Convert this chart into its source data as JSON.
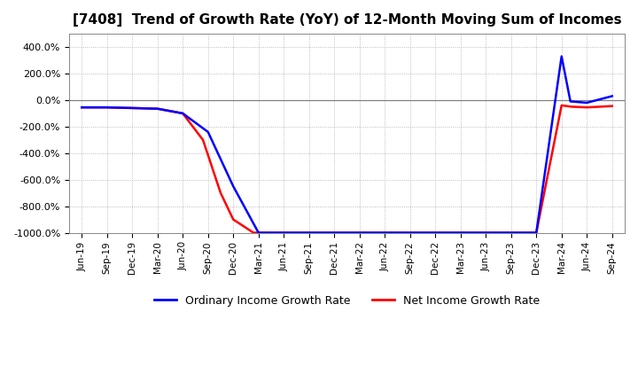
{
  "title": "[7408]  Trend of Growth Rate (YoY) of 12-Month Moving Sum of Incomes",
  "title_fontsize": 11,
  "background_color": "#ffffff",
  "grid_color": "#aaaaaa",
  "ylim": [
    -1000,
    500
  ],
  "yticks": [
    -1000,
    -800,
    -600,
    -400,
    -200,
    0,
    200,
    400
  ],
  "ytick_labels": [
    "-1000.0%",
    "-800.0%",
    "-600.0%",
    "-400.0%",
    "-200.0%",
    "0.0%",
    "200.0%",
    "400.0%"
  ],
  "xtick_labels": [
    "Jun-19",
    "Sep-19",
    "Dec-19",
    "Mar-20",
    "Jun-20",
    "Sep-20",
    "Dec-20",
    "Mar-21",
    "Jun-21",
    "Sep-21",
    "Dec-21",
    "Mar-22",
    "Jun-22",
    "Sep-22",
    "Dec-22",
    "Mar-23",
    "Jun-23",
    "Sep-23",
    "Dec-23",
    "Mar-24",
    "Jun-24",
    "Sep-24"
  ],
  "ordinary_income_color": "#0000ff",
  "net_income_color": "#ff0000",
  "ordinary_income_label": "Ordinary Income Growth Rate",
  "net_income_label": "Net Income Growth Rate",
  "ordinary_income_x": [
    0,
    1,
    2,
    3,
    4,
    5,
    6,
    7,
    18,
    19,
    19.35,
    20,
    21
  ],
  "ordinary_income_y": [
    -55,
    -55,
    -60,
    -65,
    -100,
    -240,
    -650,
    -1000,
    -1000,
    330,
    -10,
    -20,
    30
  ],
  "net_income_x": [
    0,
    1,
    2,
    3,
    4,
    4.8,
    5.5,
    6,
    6.8,
    18,
    19,
    19.4,
    20,
    21
  ],
  "net_income_y": [
    -55,
    -55,
    -60,
    -65,
    -100,
    -300,
    -700,
    -900,
    -1000,
    -1000,
    -40,
    -50,
    -55,
    -45
  ],
  "legend_labels": [
    "Ordinary Income Growth Rate",
    "Net Income Growth Rate"
  ],
  "legend_colors": [
    "#0000ff",
    "#ff0000"
  ],
  "zero_line_color": "#808080"
}
